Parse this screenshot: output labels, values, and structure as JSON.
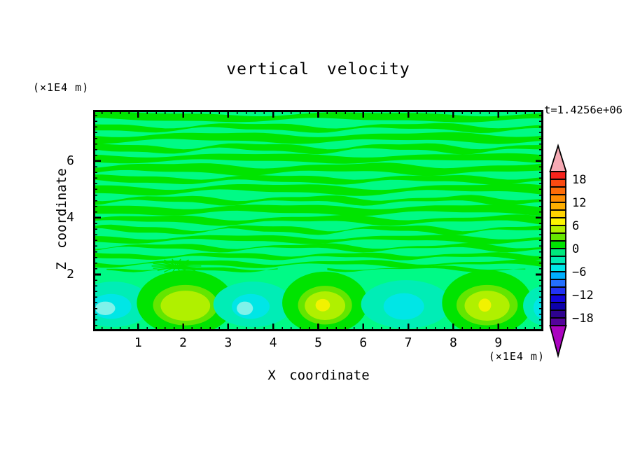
{
  "chart_data": {
    "type": "heatmap",
    "title": "vertical velocity",
    "time_label": "t=1.4256e+06",
    "xlabel": "X coordinate",
    "ylabel": "Z coordinate",
    "x_unit": "(×1E4 m)",
    "z_unit": "(×1E4 m)",
    "xlim": [
      0,
      10
    ],
    "zlim": [
      0,
      7.8
    ],
    "xticks": [
      1,
      2,
      3,
      4,
      5,
      6,
      7,
      8,
      9
    ],
    "zticks": [
      2,
      4,
      6
    ],
    "minor_tick_step": 0.2,
    "colorbar": {
      "min": -20,
      "max": 20,
      "step": 2,
      "labels": [
        "18",
        "12",
        "6",
        "0",
        "−6",
        "−12",
        "−18"
      ],
      "label_boundary_index": [
        1,
        4,
        7,
        10,
        13,
        16,
        19
      ],
      "over_color": "#f6aab4",
      "under_color": "#ab04c0",
      "colors_top_to_bottom": [
        "#f7231c",
        "#fb4a11",
        "#fd6c08",
        "#fe8d02",
        "#feae00",
        "#fed300",
        "#fcf500",
        "#b2f000",
        "#66e600",
        "#00e400",
        "#00e87d",
        "#00ecb4",
        "#00e8e8",
        "#00aefe",
        "#2470ff",
        "#2233f4",
        "#1205dc",
        "#0d01ab",
        "#2e028e",
        "#55039b"
      ]
    },
    "palette": {
      "background": "#00fa86",
      "band": "#00e400",
      "pos_layers": [
        "#00e400",
        "#63e600",
        "#b0f000",
        "#f2f200"
      ],
      "neg_layers": [
        "#00edb6",
        "#00e6e6",
        "#7ff2ea"
      ]
    },
    "field": {
      "description": "near-zero wavy horizontal bands above z≈2.3; alternating up/down convective cells below z≈2",
      "bands": [
        {
          "z": 7.55,
          "t": 0.22,
          "a": 0.06,
          "w": 5.2,
          "p": 0.5
        },
        {
          "z": 7.18,
          "t": 0.16,
          "a": 0.08,
          "w": 3.8,
          "p": 2.1
        },
        {
          "z": 6.82,
          "t": 0.24,
          "a": 0.07,
          "w": 4.6,
          "p": 4.0
        },
        {
          "z": 6.45,
          "t": 0.18,
          "a": 0.09,
          "w": 3.4,
          "p": 1.2
        },
        {
          "z": 6.1,
          "t": 0.22,
          "a": 0.06,
          "w": 5.0,
          "p": 3.3
        },
        {
          "z": 5.72,
          "t": 0.26,
          "a": 0.08,
          "w": 4.2,
          "p": 5.1
        },
        {
          "z": 5.35,
          "t": 0.18,
          "a": 0.07,
          "w": 3.6,
          "p": 0.8
        },
        {
          "z": 5.0,
          "t": 0.22,
          "a": 0.09,
          "w": 4.8,
          "p": 2.6
        },
        {
          "z": 4.62,
          "t": 0.16,
          "a": 0.08,
          "w": 3.2,
          "p": 4.4
        },
        {
          "z": 4.28,
          "t": 0.24,
          "a": 0.07,
          "w": 4.4,
          "p": 1.9
        },
        {
          "z": 3.92,
          "t": 0.18,
          "a": 0.08,
          "w": 3.9,
          "p": 5.6
        },
        {
          "z": 3.58,
          "t": 0.14,
          "a": 0.09,
          "w": 3.1,
          "p": 0.3
        },
        {
          "z": 3.25,
          "t": 0.16,
          "a": 0.07,
          "w": 4.1,
          "p": 2.9
        },
        {
          "z": 2.95,
          "t": 0.12,
          "a": 0.08,
          "w": 3.3,
          "p": 4.8
        },
        {
          "z": 2.65,
          "t": 0.13,
          "a": 0.06,
          "w": 2.9,
          "p": 1.5
        },
        {
          "z": 2.38,
          "t": 0.12,
          "a": 0.07,
          "w": 3.5,
          "p": 3.7
        },
        {
          "z": 2.18,
          "t": 0.08,
          "a": 0.05,
          "w": 2.6,
          "p": 2.2,
          "xs": 0.3,
          "xe": 4.2
        },
        {
          "z": 2.2,
          "t": 0.07,
          "a": 0.06,
          "w": 3.1,
          "p": 5.0,
          "xs": 5.2,
          "xe": 9.6
        }
      ],
      "cells": [
        {
          "x": 0.45,
          "z": 0.95,
          "rx": 0.85,
          "rz": 0.8,
          "sign": -1,
          "core": 0.45,
          "inner": 0.22
        },
        {
          "x": 2.05,
          "z": 1.0,
          "rx": 1.08,
          "rz": 1.15,
          "sign": 1,
          "mid": 0.72,
          "core": 0.55,
          "yellow": 0
        },
        {
          "x": 3.55,
          "z": 0.95,
          "rx": 0.88,
          "rz": 0.8,
          "sign": -1,
          "core": 0.42,
          "inner": 0.18
        },
        {
          "x": 5.15,
          "z": 1.0,
          "rx": 0.95,
          "rz": 1.1,
          "sign": 1,
          "mid": 0.6,
          "core": 0.45,
          "yellow": 0.16
        },
        {
          "x": 6.95,
          "z": 0.95,
          "rx": 1.0,
          "rz": 0.85,
          "sign": -1,
          "core": 0.45,
          "inner": 0
        },
        {
          "x": 8.75,
          "z": 1.0,
          "rx": 1.0,
          "rz": 1.15,
          "sign": 1,
          "mid": 0.68,
          "core": 0.5,
          "yellow": 0.14
        },
        {
          "x": 10.05,
          "z": 0.9,
          "rx": 0.5,
          "rz": 0.7,
          "sign": -1,
          "core": 0.22,
          "inner": 0
        }
      ],
      "fan": {
        "x": 1.85,
        "z": 2.3,
        "r": 0.55,
        "n": 9
      }
    }
  }
}
